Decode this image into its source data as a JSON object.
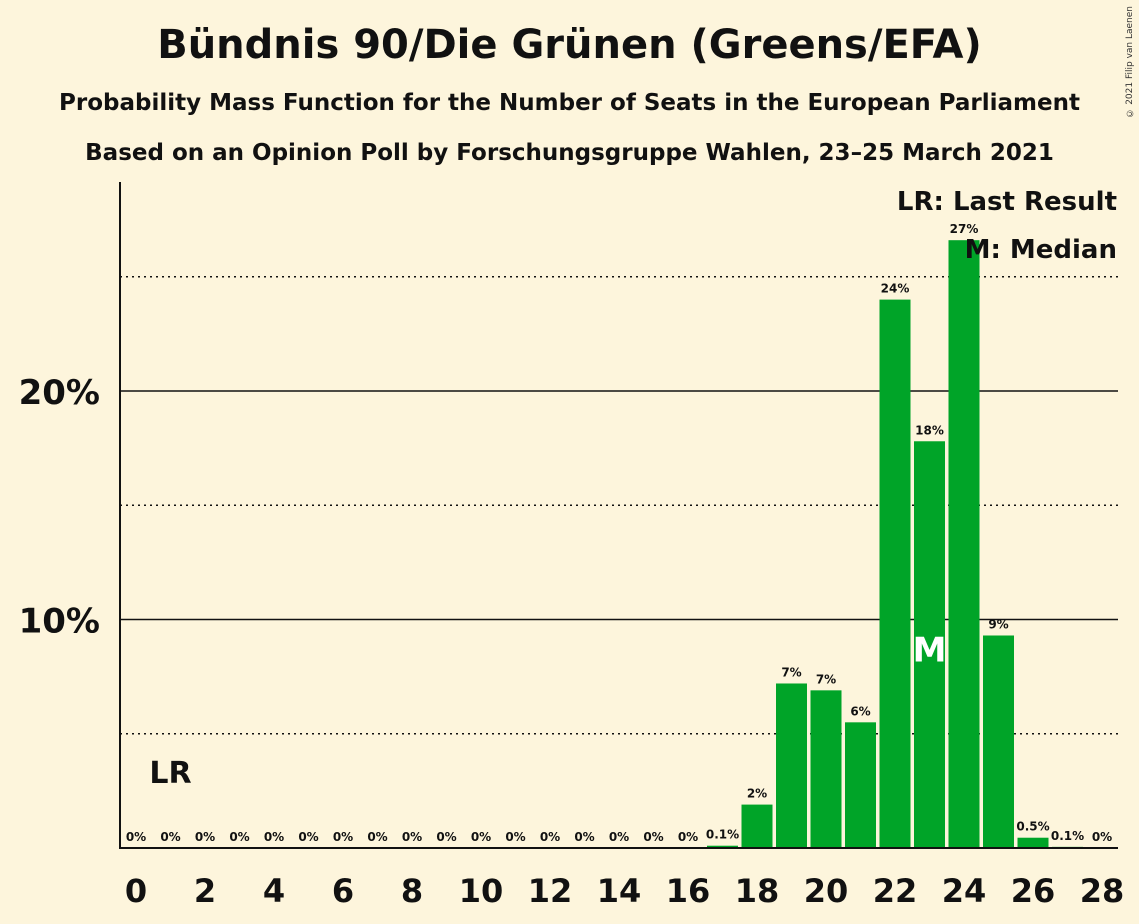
{
  "title": "Bündnis 90/Die Grünen (Greens/EFA)",
  "subtitle1": "Probability Mass Function for the Number of Seats in the European Parliament",
  "subtitle2": "Based on an Opinion Poll by Forschungsgruppe Wahlen, 23–25 March 2021",
  "copyright": "© 2021 Filip van Laenen",
  "colors": {
    "bar": "#00a428",
    "background": "#fdf5dc",
    "text": "#111111"
  },
  "chart_data": {
    "type": "bar",
    "x": [
      0,
      1,
      2,
      3,
      4,
      5,
      6,
      7,
      8,
      9,
      10,
      11,
      12,
      13,
      14,
      15,
      16,
      17,
      18,
      19,
      20,
      21,
      22,
      23,
      24,
      25,
      26,
      27,
      28
    ],
    "values": [
      0,
      0,
      0,
      0,
      0,
      0,
      0,
      0,
      0,
      0,
      0,
      0,
      0,
      0,
      0,
      0,
      0,
      0.1,
      1.9,
      7.2,
      6.9,
      5.5,
      24,
      17.8,
      26.6,
      9.3,
      0.45,
      0.05,
      0
    ],
    "labels": [
      "0%",
      "0%",
      "0%",
      "0%",
      "0%",
      "0%",
      "0%",
      "0%",
      "0%",
      "0%",
      "0%",
      "0%",
      "0%",
      "0%",
      "0%",
      "0%",
      "0%",
      "0.1%",
      "2%",
      "7%",
      "7%",
      "6%",
      "24%",
      "18%",
      "27%",
      "9%",
      "0.5%",
      "0.1%",
      "0%"
    ],
    "x_tick_labels": [
      "0",
      "2",
      "4",
      "6",
      "8",
      "10",
      "12",
      "14",
      "16",
      "18",
      "20",
      "22",
      "24",
      "26",
      "28"
    ],
    "y_tick_labels": [
      "10%",
      "20%"
    ],
    "ylim": [
      0,
      29
    ],
    "grid": "solid lines at 10% and 20%, dotted lines at 5%, 15%, 25%",
    "last_result_seat": 1,
    "median_seat": 23,
    "lr_marker": "LR",
    "median_marker": "M",
    "legend": {
      "lr": "LR: Last Result",
      "median": "M: Median",
      "placement": "top-right"
    }
  }
}
